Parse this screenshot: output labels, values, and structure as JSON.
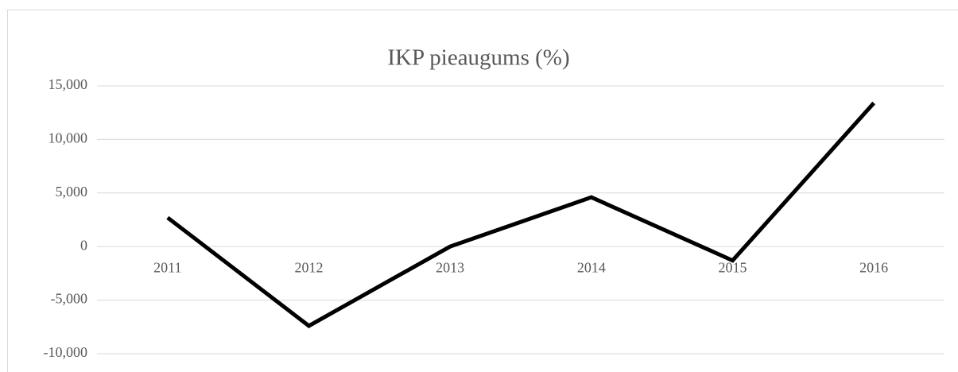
{
  "chart_data": {
    "type": "line",
    "title": "IKP pieaugums (%)",
    "categories": [
      "2011",
      "2012",
      "2013",
      "2014",
      "2015",
      "2016"
    ],
    "values": [
      2700,
      -7400,
      0,
      4600,
      -1300,
      13400
    ],
    "color": "#000000",
    "ylim": [
      -10000,
      15000
    ],
    "yticks": [
      {
        "value": -10000,
        "label": "-10,000"
      },
      {
        "value": -5000,
        "label": "-5,000"
      },
      0,
      {
        "value": 5000,
        "label": "5,000"
      },
      {
        "value": 10000,
        "label": "10,000"
      },
      {
        "value": 15000,
        "label": "15,000"
      }
    ],
    "grid": true
  }
}
